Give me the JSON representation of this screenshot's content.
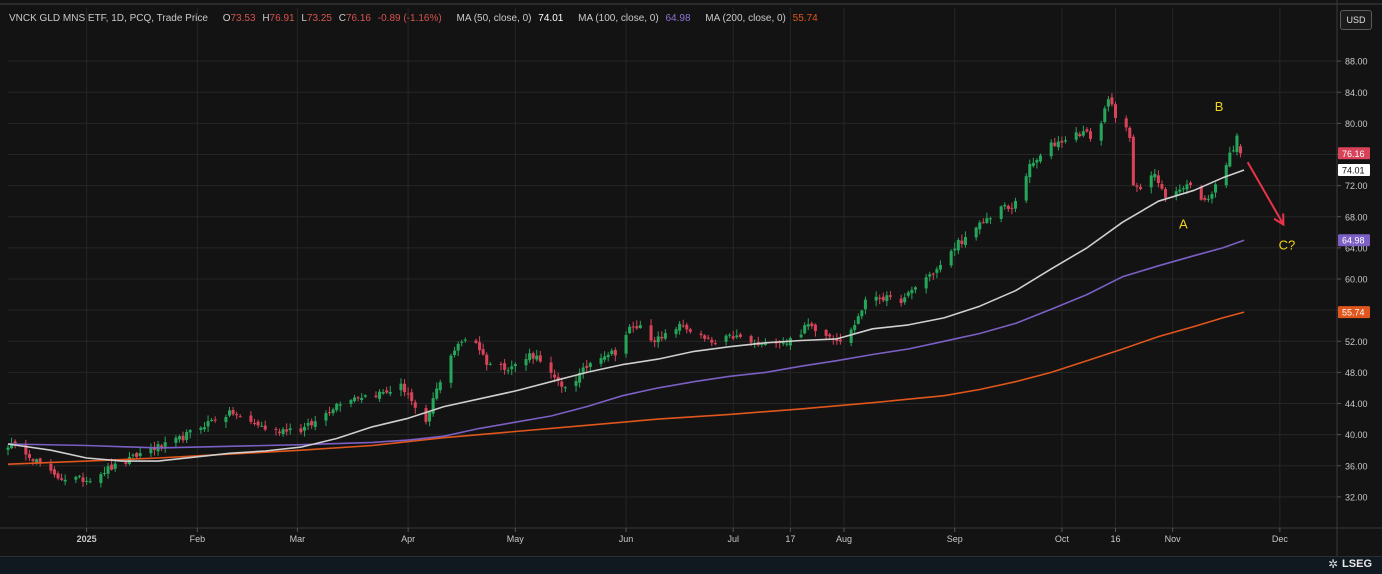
{
  "header": {
    "instrument": "VNCK GLD MNS ETF, 1D, PCQ, Trade Price",
    "o_label": "O",
    "o_value": "73.53",
    "h_label": "H",
    "h_value": "76.91",
    "l_label": "L",
    "l_value": "73.25",
    "c_label": "C",
    "c_value": "76.16",
    "change": "-0.89 (-1.16%)",
    "ma50_label": "MA (50, close, 0)",
    "ma50_value": "74.01",
    "ma100_label": "MA (100, close, 0)",
    "ma100_value": "64.98",
    "ma200_label": "MA (200, close, 0)",
    "ma200_value": "55.74"
  },
  "currency_button": "USD",
  "brand": {
    "name": "LSEG",
    "logo_icon": "lseg-logo-icon"
  },
  "colors": {
    "up": "#26a65b",
    "down": "#d9435a",
    "ma50": "#cfcfcf",
    "ma100": "#7b5fc4",
    "ma200": "#e0561c",
    "annotation": "#f2d31b",
    "arrow": "#e8334a",
    "grid": "#262626"
  },
  "chart_data": {
    "type": "candlestick",
    "ylim": [
      28,
      92
    ],
    "yticks": [
      "32.00",
      "36.00",
      "40.00",
      "44.00",
      "48.00",
      "52.00",
      "56.00",
      "60.00",
      "64.00",
      "68.00",
      "72.00",
      "76.00",
      "80.00",
      "84.00",
      "88.00"
    ],
    "xticks": [
      {
        "label": "2025",
        "day": 0,
        "bold": true
      },
      {
        "label": "Feb",
        "day": 31
      },
      {
        "label": "Mar",
        "day": 59
      },
      {
        "label": "Apr",
        "day": 90
      },
      {
        "label": "May",
        "day": 120
      },
      {
        "label": "Jun",
        "day": 151
      },
      {
        "label": "Jul",
        "day": 181
      },
      {
        "label": "17",
        "day": 197
      },
      {
        "label": "Aug",
        "day": 212
      },
      {
        "label": "Sep",
        "day": 243
      },
      {
        "label": "Oct",
        "day": 273
      },
      {
        "label": "16",
        "day": 288
      },
      {
        "label": "Nov",
        "day": 304
      },
      {
        "label": "Dec",
        "day": 334
      }
    ],
    "price_path": [
      [
        -22,
        38.7
      ],
      [
        -18,
        38.3
      ],
      [
        -15,
        37.0
      ],
      [
        -12,
        35.8
      ],
      [
        -9,
        34.6
      ],
      [
        -6,
        34.4
      ],
      [
        -3,
        34.3
      ],
      [
        0,
        34.2
      ],
      [
        3,
        34.9
      ],
      [
        6,
        35.6
      ],
      [
        10,
        36.2
      ],
      [
        14,
        37.3
      ],
      [
        18,
        38.2
      ],
      [
        22,
        38.6
      ],
      [
        26,
        39.4
      ],
      [
        30,
        40.5
      ],
      [
        33,
        41.3
      ],
      [
        37,
        42.3
      ],
      [
        41,
        42.8
      ],
      [
        44,
        41.8
      ],
      [
        48,
        41.3
      ],
      [
        52,
        40.3
      ],
      [
        56,
        40.8
      ],
      [
        60,
        40.6
      ],
      [
        64,
        41.6
      ],
      [
        68,
        43.2
      ],
      [
        72,
        44.6
      ],
      [
        76,
        44.9
      ],
      [
        80,
        45.1
      ],
      [
        84,
        45.5
      ],
      [
        88,
        46.2
      ],
      [
        90,
        45.3
      ],
      [
        93,
        42.0
      ],
      [
        95,
        41.2
      ],
      [
        97,
        44.5
      ],
      [
        99,
        47.0
      ],
      [
        101,
        49.8
      ],
      [
        104,
        51.4
      ],
      [
        107,
        52.9
      ],
      [
        109,
        51.9
      ],
      [
        112,
        49.3
      ],
      [
        115,
        48.8
      ],
      [
        118,
        48.7
      ],
      [
        122,
        49.2
      ],
      [
        124,
        50.3
      ],
      [
        127,
        49.8
      ],
      [
        130,
        47.7
      ],
      [
        133,
        46.0
      ],
      [
        136,
        46.7
      ],
      [
        139,
        48.2
      ],
      [
        142,
        49.8
      ],
      [
        145,
        50.4
      ],
      [
        148,
        50.6
      ],
      [
        152,
        53.6
      ],
      [
        155,
        53.9
      ],
      [
        158,
        52.4
      ],
      [
        161,
        52.2
      ],
      [
        164,
        53.7
      ],
      [
        167,
        54.0
      ],
      [
        170,
        53.1
      ],
      [
        173,
        52.2
      ],
      [
        176,
        51.6
      ],
      [
        178,
        52.2
      ],
      [
        181,
        52.6
      ],
      [
        184,
        52.3
      ],
      [
        187,
        51.6
      ],
      [
        190,
        51.4
      ],
      [
        193,
        52.2
      ],
      [
        196,
        51.9
      ],
      [
        199,
        52.8
      ],
      [
        202,
        54.1
      ],
      [
        205,
        53.5
      ],
      [
        208,
        52.8
      ],
      [
        211,
        52.2
      ],
      [
        214,
        53.3
      ],
      [
        216,
        55.2
      ],
      [
        218,
        57.0
      ],
      [
        220,
        58.0
      ],
      [
        223,
        57.6
      ],
      [
        226,
        57.2
      ],
      [
        229,
        57.4
      ],
      [
        232,
        59.0
      ],
      [
        235,
        60.2
      ],
      [
        238,
        61.2
      ],
      [
        241,
        62.6
      ],
      [
        244,
        64.8
      ],
      [
        247,
        65.2
      ],
      [
        250,
        66.9
      ],
      [
        253,
        68.1
      ],
      [
        256,
        69.3
      ],
      [
        259,
        68.9
      ],
      [
        261,
        71.5
      ],
      [
        264,
        74.4
      ],
      [
        267,
        75.7
      ],
      [
        270,
        77.2
      ],
      [
        273,
        77.8
      ],
      [
        276,
        78.5
      ],
      [
        279,
        78.9
      ],
      [
        282,
        78.0
      ],
      [
        284,
        80.0
      ],
      [
        286,
        83.5
      ],
      [
        288,
        80.5
      ],
      [
        290,
        80.0
      ],
      [
        292,
        78.4
      ],
      [
        293,
        72.5
      ],
      [
        295,
        71.2
      ],
      [
        297,
        73.4
      ],
      [
        299,
        73.2
      ],
      [
        301,
        71.8
      ],
      [
        303,
        69.9
      ],
      [
        305,
        71.4
      ],
      [
        307,
        71.5
      ],
      [
        309,
        72.4
      ],
      [
        311,
        69.8
      ],
      [
        313,
        70.2
      ],
      [
        315,
        71.0
      ],
      [
        317,
        73.0
      ],
      [
        319,
        75.0
      ],
      [
        321,
        76.8
      ],
      [
        322,
        78.8
      ],
      [
        323,
        77.0
      ],
      [
        324,
        76.16
      ]
    ],
    "ma50_path": [
      [
        -22,
        38.8
      ],
      [
        -10,
        38.0
      ],
      [
        0,
        37.0
      ],
      [
        10,
        36.6
      ],
      [
        20,
        36.6
      ],
      [
        30,
        37.1
      ],
      [
        40,
        37.6
      ],
      [
        50,
        37.9
      ],
      [
        60,
        38.4
      ],
      [
        70,
        39.5
      ],
      [
        80,
        41.0
      ],
      [
        90,
        42.1
      ],
      [
        100,
        43.6
      ],
      [
        110,
        44.6
      ],
      [
        120,
        45.6
      ],
      [
        130,
        46.8
      ],
      [
        140,
        48.0
      ],
      [
        150,
        49.0
      ],
      [
        160,
        49.7
      ],
      [
        170,
        50.7
      ],
      [
        180,
        51.3
      ],
      [
        190,
        51.8
      ],
      [
        200,
        52.1
      ],
      [
        210,
        52.3
      ],
      [
        220,
        53.6
      ],
      [
        230,
        54.1
      ],
      [
        240,
        55.0
      ],
      [
        250,
        56.5
      ],
      [
        260,
        58.5
      ],
      [
        270,
        61.3
      ],
      [
        280,
        64.0
      ],
      [
        290,
        67.3
      ],
      [
        300,
        70.0
      ],
      [
        310,
        71.4
      ],
      [
        318,
        73.0
      ],
      [
        324,
        74.01
      ]
    ],
    "ma100_path": [
      [
        -22,
        38.8
      ],
      [
        0,
        38.6
      ],
      [
        20,
        38.3
      ],
      [
        40,
        38.5
      ],
      [
        60,
        38.7
      ],
      [
        80,
        39.0
      ],
      [
        90,
        39.3
      ],
      [
        100,
        39.8
      ],
      [
        110,
        40.8
      ],
      [
        120,
        41.6
      ],
      [
        130,
        42.4
      ],
      [
        140,
        43.6
      ],
      [
        150,
        45.0
      ],
      [
        160,
        46.0
      ],
      [
        170,
        46.8
      ],
      [
        180,
        47.5
      ],
      [
        190,
        48.0
      ],
      [
        200,
        48.8
      ],
      [
        210,
        49.5
      ],
      [
        220,
        50.3
      ],
      [
        230,
        51.0
      ],
      [
        240,
        52.0
      ],
      [
        250,
        53.0
      ],
      [
        260,
        54.3
      ],
      [
        270,
        56.1
      ],
      [
        280,
        58.0
      ],
      [
        290,
        60.3
      ],
      [
        300,
        61.7
      ],
      [
        310,
        63.0
      ],
      [
        318,
        64.0
      ],
      [
        324,
        64.98
      ]
    ],
    "ma200_path": [
      [
        -22,
        36.2
      ],
      [
        0,
        36.6
      ],
      [
        20,
        37.0
      ],
      [
        40,
        37.5
      ],
      [
        60,
        38.0
      ],
      [
        80,
        38.6
      ],
      [
        100,
        39.6
      ],
      [
        120,
        40.4
      ],
      [
        140,
        41.2
      ],
      [
        160,
        42.0
      ],
      [
        180,
        42.6
      ],
      [
        200,
        43.3
      ],
      [
        220,
        44.1
      ],
      [
        240,
        45.0
      ],
      [
        250,
        45.8
      ],
      [
        260,
        46.8
      ],
      [
        270,
        48.0
      ],
      [
        280,
        49.5
      ],
      [
        290,
        51.0
      ],
      [
        300,
        52.6
      ],
      [
        310,
        53.9
      ],
      [
        318,
        55.0
      ],
      [
        324,
        55.74
      ]
    ],
    "price_tags": [
      {
        "value": 76.16,
        "label": "76.16",
        "bg": "#d9435a",
        "fg": "#ffffff"
      },
      {
        "value": 74.01,
        "label": "74.01",
        "bg": "#ffffff",
        "fg": "#111111"
      },
      {
        "value": 64.98,
        "label": "64.98",
        "bg": "#7b5fc4",
        "fg": "#ffffff"
      },
      {
        "value": 55.74,
        "label": "55.74",
        "bg": "#e0561c",
        "fg": "#ffffff"
      }
    ],
    "annotations": [
      {
        "text": "B",
        "day": 317,
        "value": 81.6
      },
      {
        "text": "A",
        "day": 307,
        "value": 66.5
      },
      {
        "text": "C?",
        "day": 336,
        "value": 63.8
      }
    ],
    "arrow": {
      "from": {
        "day": 325,
        "value": 75.0
      },
      "to": {
        "day": 335,
        "value": 67.0
      }
    }
  }
}
